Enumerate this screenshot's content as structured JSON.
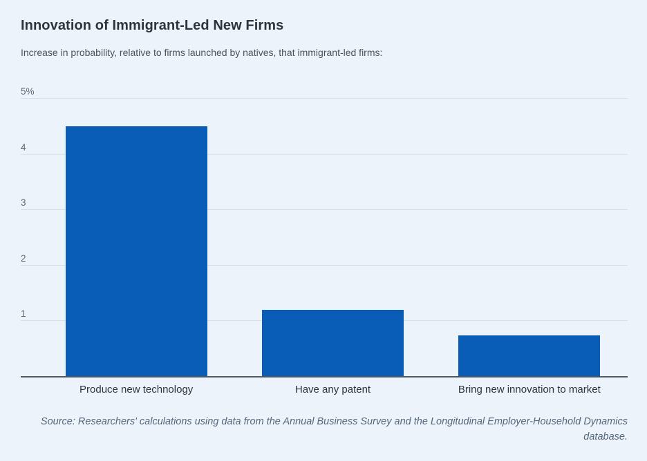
{
  "chart_data": {
    "type": "bar",
    "title": "Innovation of Immigrant-Led New Firms",
    "subtitle": "Increase in probability, relative to firms launched by natives, that immigrant-led firms:",
    "categories": [
      "Produce new technology",
      "Have any patent",
      "Bring new innovation to market"
    ],
    "values": [
      4.5,
      1.2,
      0.75
    ],
    "ylim": [
      0,
      5
    ],
    "y_ticks": [
      {
        "value": 5,
        "label": "5%"
      },
      {
        "value": 4,
        "label": "4"
      },
      {
        "value": 3,
        "label": "3"
      },
      {
        "value": 2,
        "label": "2"
      },
      {
        "value": 1,
        "label": "1"
      }
    ],
    "grid": true,
    "legend": "none",
    "bar_color": "#0a5db6",
    "background_color": "#edf3fb",
    "source": "Source: Researchers' calculations using data from the Annual Business Survey and the Longitudinal Employer-Household Dynamics database."
  }
}
